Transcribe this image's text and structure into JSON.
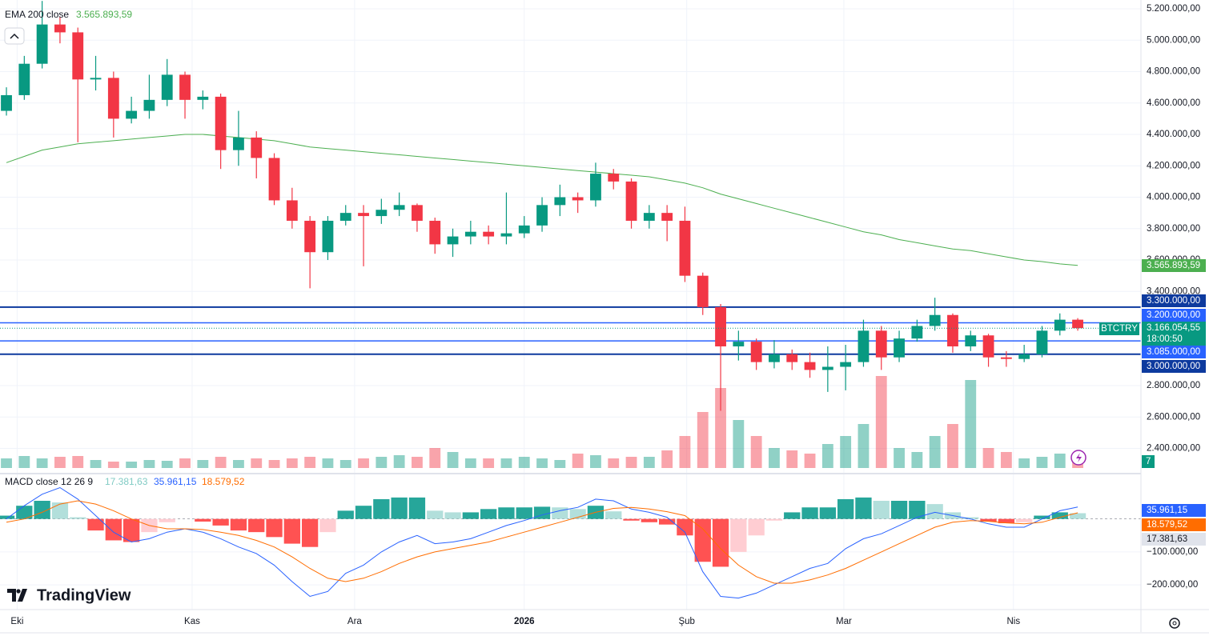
{
  "chart_data": {
    "type": "candlestick",
    "symbol": "BTCTRY",
    "last_price_label": "3.166.054,55",
    "countdown": "18:00:50",
    "colors": {
      "up": "#089981",
      "down": "#f23645"
    },
    "open": [
      4550000,
      4650000,
      4850000,
      5100000,
      5050000,
      4750000,
      4760000,
      4500000,
      4550000,
      4620000,
      4780000,
      4620000,
      4640000,
      4300000,
      4380000,
      4250000,
      3980000,
      3850000,
      3650000,
      3850000,
      3900000,
      3880000,
      3920000,
      3950000,
      3850000,
      3700000,
      3750000,
      3780000,
      3750000,
      3770000,
      3820000,
      3950000,
      4000000,
      3980000,
      4150000,
      4100000,
      3850000,
      3900000,
      3850000,
      3500000,
      3300000,
      3050000,
      3080000,
      2950000,
      3000000,
      2950000,
      2900000,
      2920000,
      2950000,
      3150000,
      2980000,
      3100000,
      3180000,
      3250000,
      3050000,
      3120000,
      2980000,
      2970000,
      3000000,
      3150000,
      3220000
    ],
    "high": [
      4700000,
      4900000,
      5250000,
      5150000,
      5080000,
      4900000,
      4800000,
      4640000,
      4780000,
      4880000,
      4800000,
      4680000,
      4660000,
      4550000,
      4420000,
      4280000,
      4060000,
      3880000,
      3880000,
      3950000,
      3950000,
      3990000,
      4030000,
      3960000,
      3870000,
      3800000,
      3850000,
      3820000,
      4030000,
      3880000,
      4000000,
      4080000,
      4030000,
      4220000,
      4180000,
      4120000,
      3950000,
      3950000,
      3940000,
      3520000,
      3320000,
      3150000,
      3100000,
      3090000,
      3030000,
      3010000,
      3050000,
      3060000,
      3220000,
      3180000,
      3150000,
      3220000,
      3360000,
      3260000,
      3150000,
      3130000,
      3020000,
      3060000,
      3180000,
      3260000,
      3230000
    ],
    "low": [
      4520000,
      4620000,
      4820000,
      4980000,
      4350000,
      4680000,
      4380000,
      4470000,
      4500000,
      4580000,
      4500000,
      4560000,
      4180000,
      4200000,
      4120000,
      3950000,
      3800000,
      3420000,
      3600000,
      3820000,
      3560000,
      3830000,
      3880000,
      3780000,
      3640000,
      3620000,
      3700000,
      3700000,
      3700000,
      3740000,
      3780000,
      3880000,
      3900000,
      3940000,
      4050000,
      3800000,
      3800000,
      3720000,
      3460000,
      3250000,
      2640000,
      2960000,
      2900000,
      2910000,
      2900000,
      2850000,
      2760000,
      2770000,
      2920000,
      2900000,
      2950000,
      3080000,
      3150000,
      3010000,
      3020000,
      2920000,
      2920000,
      2950000,
      2980000,
      3120000,
      3150000
    ],
    "close": [
      4650000,
      4850000,
      5100000,
      5050000,
      4750000,
      4760000,
      4500000,
      4550000,
      4620000,
      4780000,
      4620000,
      4640000,
      4300000,
      4380000,
      4250000,
      3980000,
      3850000,
      3650000,
      3850000,
      3900000,
      3880000,
      3920000,
      3950000,
      3850000,
      3700000,
      3750000,
      3780000,
      3750000,
      3770000,
      3820000,
      3950000,
      4000000,
      3980000,
      4150000,
      4100000,
      3850000,
      3900000,
      3850000,
      3500000,
      3300000,
      3050000,
      3080000,
      2950000,
      3000000,
      2950000,
      2900000,
      2920000,
      2950000,
      3150000,
      2980000,
      3100000,
      3180000,
      3250000,
      3050000,
      3120000,
      2980000,
      2970000,
      3000000,
      3150000,
      3220000,
      3166054.55
    ],
    "volume": [
      12,
      15,
      12,
      14,
      15,
      10,
      8,
      8,
      10,
      9,
      12,
      10,
      14,
      10,
      12,
      10,
      12,
      14,
      12,
      10,
      12,
      14,
      16,
      14,
      25,
      20,
      12,
      12,
      12,
      14,
      12,
      10,
      18,
      16,
      12,
      14,
      14,
      22,
      40,
      70,
      100,
      60,
      40,
      25,
      22,
      18,
      30,
      40,
      55,
      115,
      25,
      20,
      40,
      55,
      110,
      25,
      20,
      12,
      14,
      18,
      16
    ],
    "volume_label": "7",
    "ema": {
      "name": "EMA 200 close",
      "color": "#4caf50",
      "last_label": "3.565.893,59",
      "values": [
        4220000,
        4260000,
        4300000,
        4320000,
        4340000,
        4350000,
        4360000,
        4370000,
        4380000,
        4390000,
        4400000,
        4400000,
        4390000,
        4380000,
        4370000,
        4360000,
        4340000,
        4320000,
        4310000,
        4300000,
        4290000,
        4280000,
        4270000,
        4260000,
        4250000,
        4240000,
        4230000,
        4220000,
        4210000,
        4200000,
        4190000,
        4180000,
        4170000,
        4160000,
        4150000,
        4140000,
        4130000,
        4110000,
        4090000,
        4060000,
        4020000,
        3990000,
        3960000,
        3930000,
        3900000,
        3870000,
        3840000,
        3810000,
        3780000,
        3760000,
        3730000,
        3710000,
        3690000,
        3670000,
        3660000,
        3640000,
        3620000,
        3600000,
        3590000,
        3575000,
        3565893.59
      ]
    },
    "levels": [
      {
        "value": 3300000,
        "label": "3.300.000,00"
      },
      {
        "value": 3200000,
        "label": "3.200.000,00"
      },
      {
        "value": 3085000,
        "label": "3.085.000,00"
      },
      {
        "value": 3000000,
        "label": "3.000.000,00"
      }
    ],
    "ylim": [
      2250000,
      5256000
    ],
    "yticks": [
      {
        "value": 5200000,
        "label": "5.200.000,00"
      },
      {
        "value": 5000000,
        "label": "5.000.000,00"
      },
      {
        "value": 4800000,
        "label": "4.800.000,00"
      },
      {
        "value": 4600000,
        "label": "4.600.000,00"
      },
      {
        "value": 4400000,
        "label": "4.400.000,00"
      },
      {
        "value": 4200000,
        "label": "4.200.000,00"
      },
      {
        "value": 4000000,
        "label": "4.000.000,00"
      },
      {
        "value": 3800000,
        "label": "3.800.000,00"
      },
      {
        "value": 3600000,
        "label": "3.600.000,00"
      },
      {
        "value": 3400000,
        "label": "3.400.000,00"
      },
      {
        "value": 2800000,
        "label": "2.800.000,00"
      },
      {
        "value": 2600000,
        "label": "2.600.000,00"
      },
      {
        "value": 2400000,
        "label": "2.400.000,00"
      }
    ],
    "xlim": [
      -0.36,
      63.54
    ],
    "xticks": [
      {
        "value": 0.6,
        "label": "Eki"
      },
      {
        "value": 10.4,
        "label": "Kas"
      },
      {
        "value": 19.5,
        "label": "Ara"
      },
      {
        "value": 29,
        "label": "2026"
      },
      {
        "value": 38.1,
        "label": "Şub"
      },
      {
        "value": 46.9,
        "label": "Mar"
      },
      {
        "value": 56.4,
        "label": "Nis"
      }
    ],
    "macd": {
      "title": "MACD close 12 26 9",
      "hist_label": "17.381,63",
      "macd_label": "35.961,15",
      "signal_label": "18.579,52",
      "macd_color": "#2962ff",
      "signal_color": "#ff6d00",
      "macd": [
        0,
        40000,
        75000,
        95000,
        60000,
        10000,
        -40000,
        -70000,
        -60000,
        -40000,
        -30000,
        -40000,
        -60000,
        -85000,
        -105000,
        -140000,
        -190000,
        -235000,
        -220000,
        -165000,
        -140000,
        -100000,
        -70000,
        -50000,
        -75000,
        -70000,
        -60000,
        -40000,
        -20000,
        -5000,
        12000,
        25000,
        35000,
        60000,
        55000,
        30000,
        20000,
        5000,
        -40000,
        -160000,
        -235000,
        -240000,
        -225000,
        -200000,
        -175000,
        -150000,
        -135000,
        -90000,
        -60000,
        -45000,
        -20000,
        5000,
        20000,
        10000,
        0,
        -15000,
        -25000,
        -25000,
        0,
        25000,
        35961.15
      ],
      "signal": [
        -10000,
        0,
        20000,
        45000,
        55000,
        45000,
        25000,
        0,
        -20000,
        -30000,
        -30000,
        -32000,
        -40000,
        -50000,
        -65000,
        -85000,
        -115000,
        -150000,
        -180000,
        -190000,
        -180000,
        -160000,
        -135000,
        -115000,
        -100000,
        -90000,
        -80000,
        -70000,
        -55000,
        -40000,
        -25000,
        -10000,
        5000,
        20000,
        32000,
        35000,
        30000,
        22000,
        10000,
        -30000,
        -90000,
        -140000,
        -175000,
        -195000,
        -195000,
        -185000,
        -170000,
        -150000,
        -125000,
        -100000,
        -75000,
        -50000,
        -25000,
        -10000,
        -5000,
        -7000,
        -12000,
        -15000,
        -10000,
        5000,
        18579.52
      ],
      "hist": [
        10000,
        40000,
        55000,
        50000,
        5000,
        -35000,
        -65000,
        -70000,
        -40000,
        -10000,
        0,
        -8000,
        -20000,
        -35000,
        -40000,
        -55000,
        -75000,
        -85000,
        -40000,
        25000,
        40000,
        60000,
        65000,
        65000,
        25000,
        20000,
        20000,
        30000,
        35000,
        35000,
        37000,
        35000,
        30000,
        40000,
        23000,
        -5000,
        -10000,
        -17000,
        -50000,
        -130000,
        -145000,
        -100000,
        -50000,
        -5000,
        20000,
        35000,
        35000,
        60000,
        65000,
        55000,
        55000,
        55000,
        45000,
        20000,
        5000,
        -8000,
        -13000,
        -10000,
        10000,
        20000,
        17381.63
      ],
      "ylim": [
        -275000,
        137500
      ],
      "yticks": [
        {
          "value": -100000,
          "label": "−100.000,00"
        },
        {
          "value": -200000,
          "label": "−200.000,00"
        }
      ]
    }
  }
}
